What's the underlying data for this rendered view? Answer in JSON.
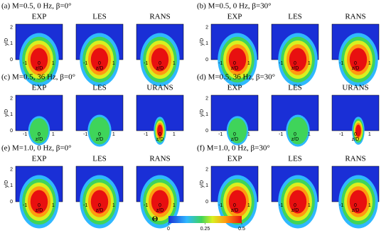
{
  "panels": [
    {
      "title": "(a) M=0.5, 0 Hz, β=0°",
      "columns": [
        "EXP",
        "LES",
        "RANS"
      ]
    },
    {
      "title": "(b) M=0.5, 0 Hz, β=30°",
      "columns": [
        "EXP",
        "LES",
        "RANS"
      ]
    },
    {
      "title": "(c) M=0.5, 36 Hz, β=0°",
      "columns": [
        "EXP",
        "LES",
        "URANS"
      ]
    },
    {
      "title": "(d) M=0.5, 36 Hz, β=30°",
      "columns": [
        "EXP",
        "LES",
        "URANS"
      ]
    },
    {
      "title": "(e) M=1.0, 0 Hz, β=0°",
      "columns": [
        "EXP",
        "LES",
        "RANS"
      ]
    },
    {
      "title": "(f) M=1.0, 0 Hz, β=30°",
      "columns": [
        "EXP",
        "LES",
        "RANS"
      ]
    }
  ],
  "axes": {
    "y_label": "y/D",
    "x_label": "z/D",
    "y_ticks": [
      "0",
      "1",
      "2"
    ],
    "x_ticks": [
      "-1",
      "0",
      "1"
    ]
  },
  "colorbar": {
    "symbol": "Θ",
    "ticks": [
      0,
      0.25,
      0.5
    ]
  }
}
